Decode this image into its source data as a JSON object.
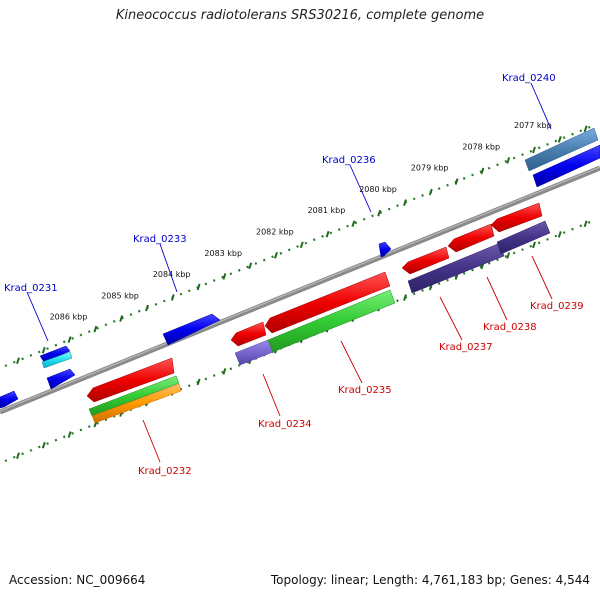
{
  "title": "Kineococcus radiotolerans SRS30216, complete genome",
  "footer": {
    "accession": "Accession: NC_009664",
    "summary": "Topology: linear; Length: 4,761,183 bp; Genes: 4,544"
  },
  "kbp_ticks": [
    "2077 kbp",
    "2078 kbp",
    "2079 kbp",
    "2080 kbp",
    "2081 kbp",
    "2082 kbp",
    "2083 kbp",
    "2084 kbp",
    "2085 kbp",
    "2086 kbp"
  ],
  "genes": [
    {
      "name": "Krad_0231",
      "color": "#0000cc"
    },
    {
      "name": "Krad_0232",
      "color": "#cc0000"
    },
    {
      "name": "Krad_0233",
      "color": "#0000cc"
    },
    {
      "name": "Krad_0234",
      "color": "#cc0000"
    },
    {
      "name": "Krad_0235",
      "color": "#cc0000"
    },
    {
      "name": "Krad_0236",
      "color": "#0000cc"
    },
    {
      "name": "Krad_0237",
      "color": "#cc0000"
    },
    {
      "name": "Krad_0238",
      "color": "#cc0000"
    },
    {
      "name": "Krad_0239",
      "color": "#cc0000"
    },
    {
      "name": "Krad_0240",
      "color": "#0000cc"
    }
  ],
  "colors": {
    "backbone": "#808080",
    "tick_dots": "#2a7a2a",
    "forward_strand": "#0000ee",
    "reverse_strand": "#ee0000",
    "cds_green": "#33cc33",
    "cds_orange": "#ff9900",
    "cds_purple": "#443388",
    "cds_steel": "#4a7fb0"
  }
}
